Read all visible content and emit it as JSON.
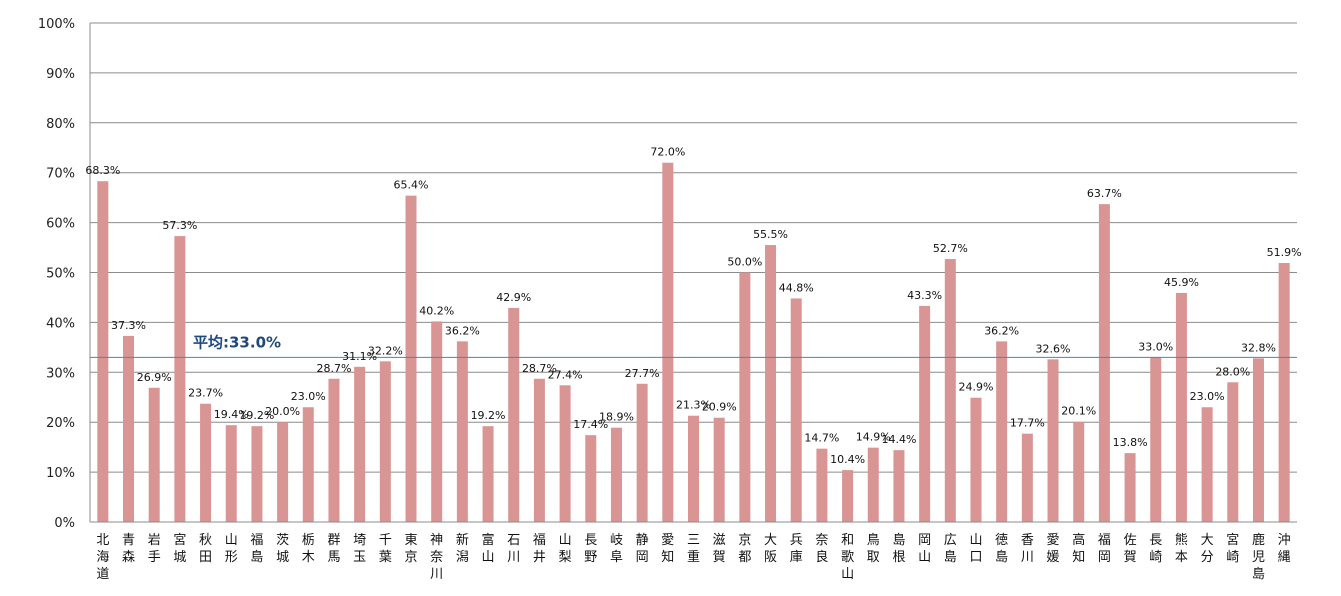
{
  "chart_data": {
    "type": "bar",
    "categories": [
      "北海道",
      "青森",
      "岩手",
      "宮城",
      "秋田",
      "山形",
      "福島",
      "茨城",
      "栃木",
      "群馬",
      "埼玉",
      "千葉",
      "東京",
      "神奈川",
      "新潟",
      "富山",
      "石川",
      "福井",
      "山梨",
      "長野",
      "岐阜",
      "静岡",
      "愛知",
      "三重",
      "滋賀",
      "京都",
      "大阪",
      "兵庫",
      "奈良",
      "和歌山",
      "鳥取",
      "島根",
      "岡山",
      "広島",
      "山口",
      "徳島",
      "香川",
      "愛媛",
      "高知",
      "福岡",
      "佐賀",
      "長崎",
      "熊本",
      "大分",
      "宮崎",
      "鹿児島",
      "沖縄"
    ],
    "values": [
      68.3,
      37.3,
      26.9,
      57.3,
      23.7,
      19.4,
      19.2,
      20.0,
      23.0,
      28.7,
      31.1,
      32.2,
      65.4,
      40.2,
      36.2,
      19.2,
      42.9,
      28.7,
      27.4,
      17.4,
      18.9,
      27.7,
      72.0,
      21.3,
      20.9,
      50.0,
      55.5,
      44.8,
      14.7,
      10.4,
      14.9,
      14.4,
      43.3,
      52.7,
      24.9,
      36.2,
      17.7,
      32.6,
      20.1,
      63.7,
      13.8,
      33.0,
      45.9,
      23.0,
      28.0,
      32.8,
      51.9
    ],
    "value_labels": [
      "68.3%",
      "37.3%",
      "26.9%",
      "57.3%",
      "23.7%",
      "19.4%",
      "19.2%",
      "20.0%",
      "23.0%",
      "28.7%",
      "31.1%",
      "32.2%",
      "65.4%",
      "40.2%",
      "36.2%",
      "19.2%",
      "42.9%",
      "28.7%",
      "27.4%",
      "17.4%",
      "18.9%",
      "27.7%",
      "72.0%",
      "21.3%",
      "20.9%",
      "50.0%",
      "55.5%",
      "44.8%",
      "14.7%",
      "10.4%",
      "14.9%",
      "14.4%",
      "43.3%",
      "52.7%",
      "24.9%",
      "36.2%",
      "17.7%",
      "32.6%",
      "20.1%",
      "63.7%",
      "13.8%",
      "33.0%",
      "45.9%",
      "23.0%",
      "28.0%",
      "32.8%",
      "51.9%"
    ],
    "ylim": [
      0,
      100
    ],
    "yticks": [
      "0%",
      "10%",
      "20%",
      "30%",
      "40%",
      "50%",
      "60%",
      "70%",
      "80%",
      "90%",
      "100%"
    ],
    "grid": true,
    "legend": "none",
    "average": {
      "value": 33.0,
      "label": "平均:33.0%"
    },
    "title": "",
    "xlabel": "",
    "ylabel": "",
    "colors": {
      "bar": "#d99594",
      "average_line": "#4f81bd",
      "average_label": "#1f497d",
      "grid": "#8c8c8c"
    }
  }
}
